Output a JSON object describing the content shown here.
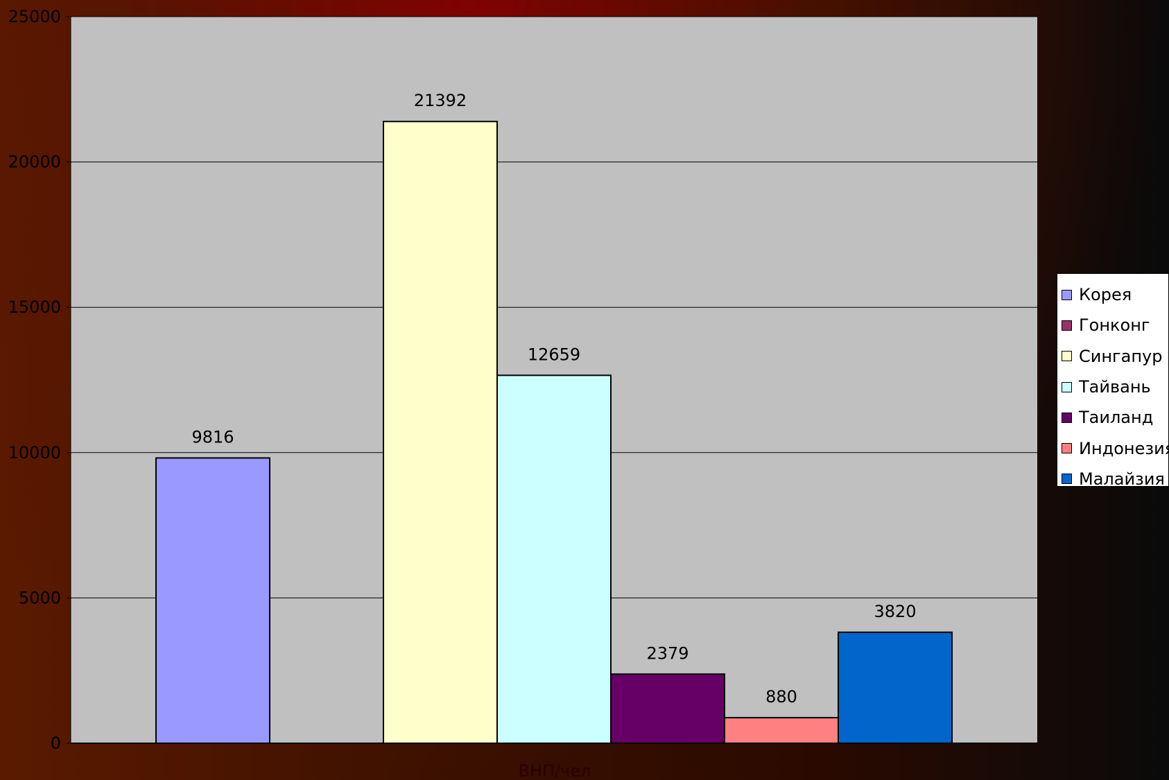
{
  "chart_data": {
    "type": "bar",
    "title": "",
    "xlabel": "ВНП/чел",
    "ylabel": "",
    "ylim": [
      0,
      25000
    ],
    "yticks": [
      0,
      5000,
      10000,
      15000,
      20000,
      25000
    ],
    "grid": true,
    "legend_position": "right",
    "plot_background": "#c0c0c0",
    "series": [
      {
        "name": "Корея",
        "value": 9816,
        "color": "#9999ff"
      },
      {
        "name": "Гонконг",
        "value": null,
        "color": "#993366"
      },
      {
        "name": "Сингапур",
        "value": 21392,
        "color": "#ffffcc"
      },
      {
        "name": "Тайвань",
        "value": 12659,
        "color": "#ccffff"
      },
      {
        "name": "Таиланд",
        "value": 2379,
        "color": "#660066"
      },
      {
        "name": "Индонезия",
        "value": 880,
        "color": "#ff8080"
      },
      {
        "name": "Малайзия",
        "value": 3820,
        "color": "#0066cc"
      }
    ]
  }
}
